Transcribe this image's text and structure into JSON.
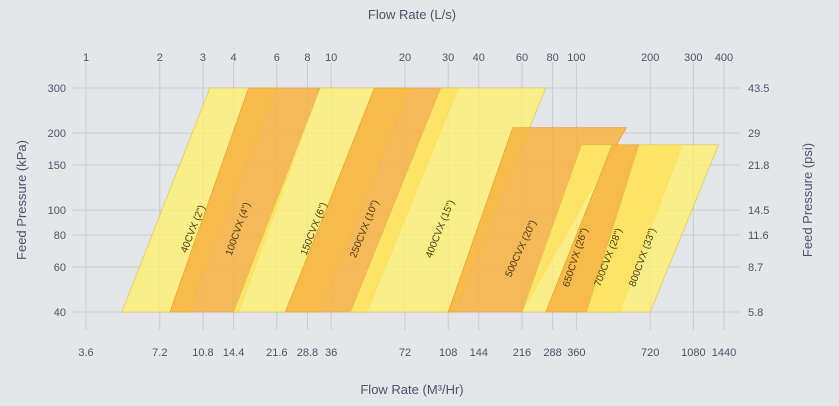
{
  "chart_data": {
    "type": "area",
    "title": "",
    "top_axis": {
      "title": "Flow Rate (L/s)",
      "scale": "log",
      "ticks": [
        "1",
        "2",
        "3",
        "4",
        "6",
        "8",
        "10",
        "20",
        "30",
        "40",
        "60",
        "80",
        "100",
        "200",
        "300",
        "400"
      ]
    },
    "bottom_axis": {
      "title": "Flow Rate (M³/Hr)",
      "scale": "log",
      "ticks": [
        "3.6",
        "7.2",
        "10.8",
        "14.4",
        "21.6",
        "28.8",
        "36",
        "72",
        "108",
        "144",
        "216",
        "288",
        "360",
        "720",
        "1080",
        "1440"
      ]
    },
    "left_axis": {
      "title": "Feed Pressure (kPa)",
      "scale": "log",
      "ticks": [
        "40",
        "60",
        "80",
        "100",
        "150",
        "200",
        "300"
      ]
    },
    "right_axis": {
      "title": "Feed Pressure (psi)",
      "ticks": [
        "5.8",
        "8.7",
        "11.6",
        "14.5",
        "21.8",
        "29",
        "43.5"
      ]
    },
    "grid": true,
    "colors": {
      "yellow": "#fff06a",
      "orange": "#f8b040",
      "background": "#e4e6ea",
      "grid": "#c8ccd4"
    },
    "series": [
      {
        "name": "40CVX (2\")",
        "color": "yellow",
        "pressure_range_kPa": [
          40,
          300
        ],
        "flow_Ls_at_40kPa": [
          1.4,
          2.6
        ],
        "flow_Ls_at_max_kPa": [
          3.2,
          6.0
        ]
      },
      {
        "name": "100CVX (4\")",
        "color": "orange",
        "pressure_range_kPa": [
          40,
          300
        ],
        "flow_Ls_at_40kPa": [
          2.2,
          4.2
        ],
        "flow_Ls_at_max_kPa": [
          4.6,
          9.0
        ]
      },
      {
        "name": "150CVX (6\")",
        "color": "yellow",
        "pressure_range_kPa": [
          40,
          300
        ],
        "flow_Ls_at_40kPa": [
          4.0,
          9.0
        ],
        "flow_Ls_at_max_kPa": [
          9.0,
          21.0
        ]
      },
      {
        "name": "250CVX (10\")",
        "color": "orange",
        "pressure_range_kPa": [
          40,
          300
        ],
        "flow_Ls_at_40kPa": [
          6.5,
          14.0
        ],
        "flow_Ls_at_max_kPa": [
          15.0,
          33.0
        ]
      },
      {
        "name": "400CVX (15\")",
        "color": "yellow",
        "pressure_range_kPa": [
          40,
          300
        ],
        "flow_Ls_at_40kPa": [
          12.0,
          32.0
        ],
        "flow_Ls_at_max_kPa": [
          28.0,
          75.0
        ]
      },
      {
        "name": "500CVX (20\")",
        "color": "orange",
        "pressure_range_kPa": [
          40,
          210
        ],
        "flow_Ls_at_40kPa": [
          30.0,
          60.0
        ],
        "flow_Ls_at_max_kPa": [
          55.0,
          160.0
        ]
      },
      {
        "name": "650CVX (26\")",
        "color": "yellow",
        "pressure_range_kPa": [
          40,
          180
        ],
        "flow_Ls_at_40kPa": [
          60.0,
          110.0
        ],
        "flow_Ls_at_max_kPa": [
          105.0,
          175.0
        ]
      },
      {
        "name": "700CVX (28\")",
        "color": "orange",
        "pressure_range_kPa": [
          40,
          180
        ],
        "flow_Ls_at_40kPa": [
          75.0,
          150.0
        ],
        "flow_Ls_at_max_kPa": [
          140.0,
          270.0
        ]
      },
      {
        "name": "800CVX (33\")",
        "color": "yellow",
        "pressure_range_kPa": [
          40,
          180
        ],
        "flow_Ls_at_40kPa": [
          110.0,
          200.0
        ],
        "flow_Ls_at_max_kPa": [
          180.0,
          380.0
        ]
      }
    ]
  }
}
